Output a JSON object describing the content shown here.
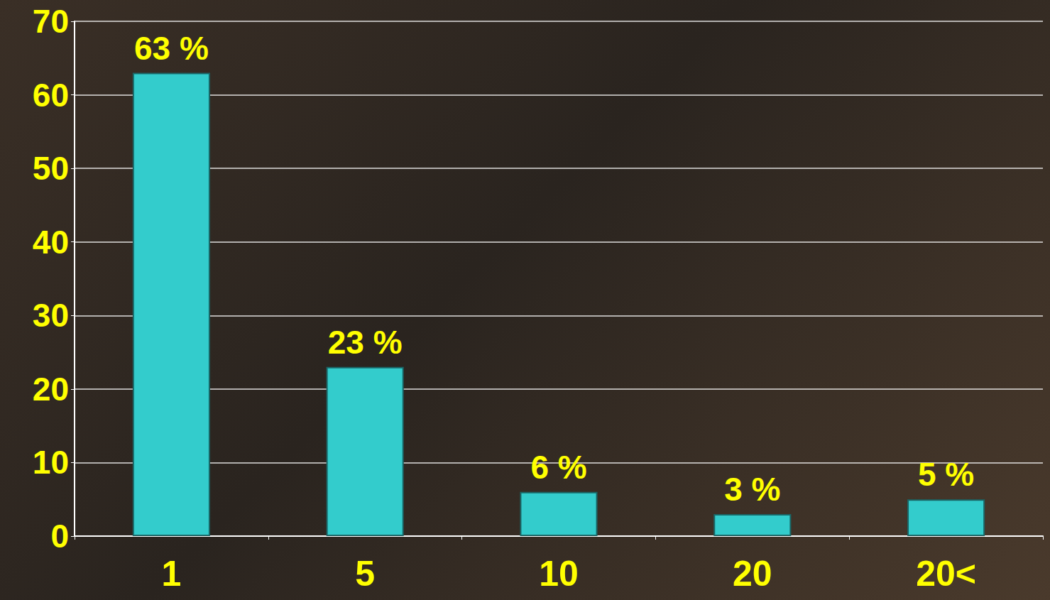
{
  "chart_data": {
    "type": "bar",
    "categories": [
      "1",
      "5",
      "10",
      "20",
      "20<"
    ],
    "values": [
      63,
      23,
      6,
      3,
      5
    ],
    "value_labels": [
      "63 %",
      "23 %",
      "6 %",
      "3 %",
      "5 %"
    ],
    "data_labels": true,
    "color": "#33cccc",
    "ylim": [
      0,
      70
    ],
    "yticks": [
      0,
      10,
      20,
      30,
      40,
      50,
      60,
      70
    ],
    "grid": true
  }
}
